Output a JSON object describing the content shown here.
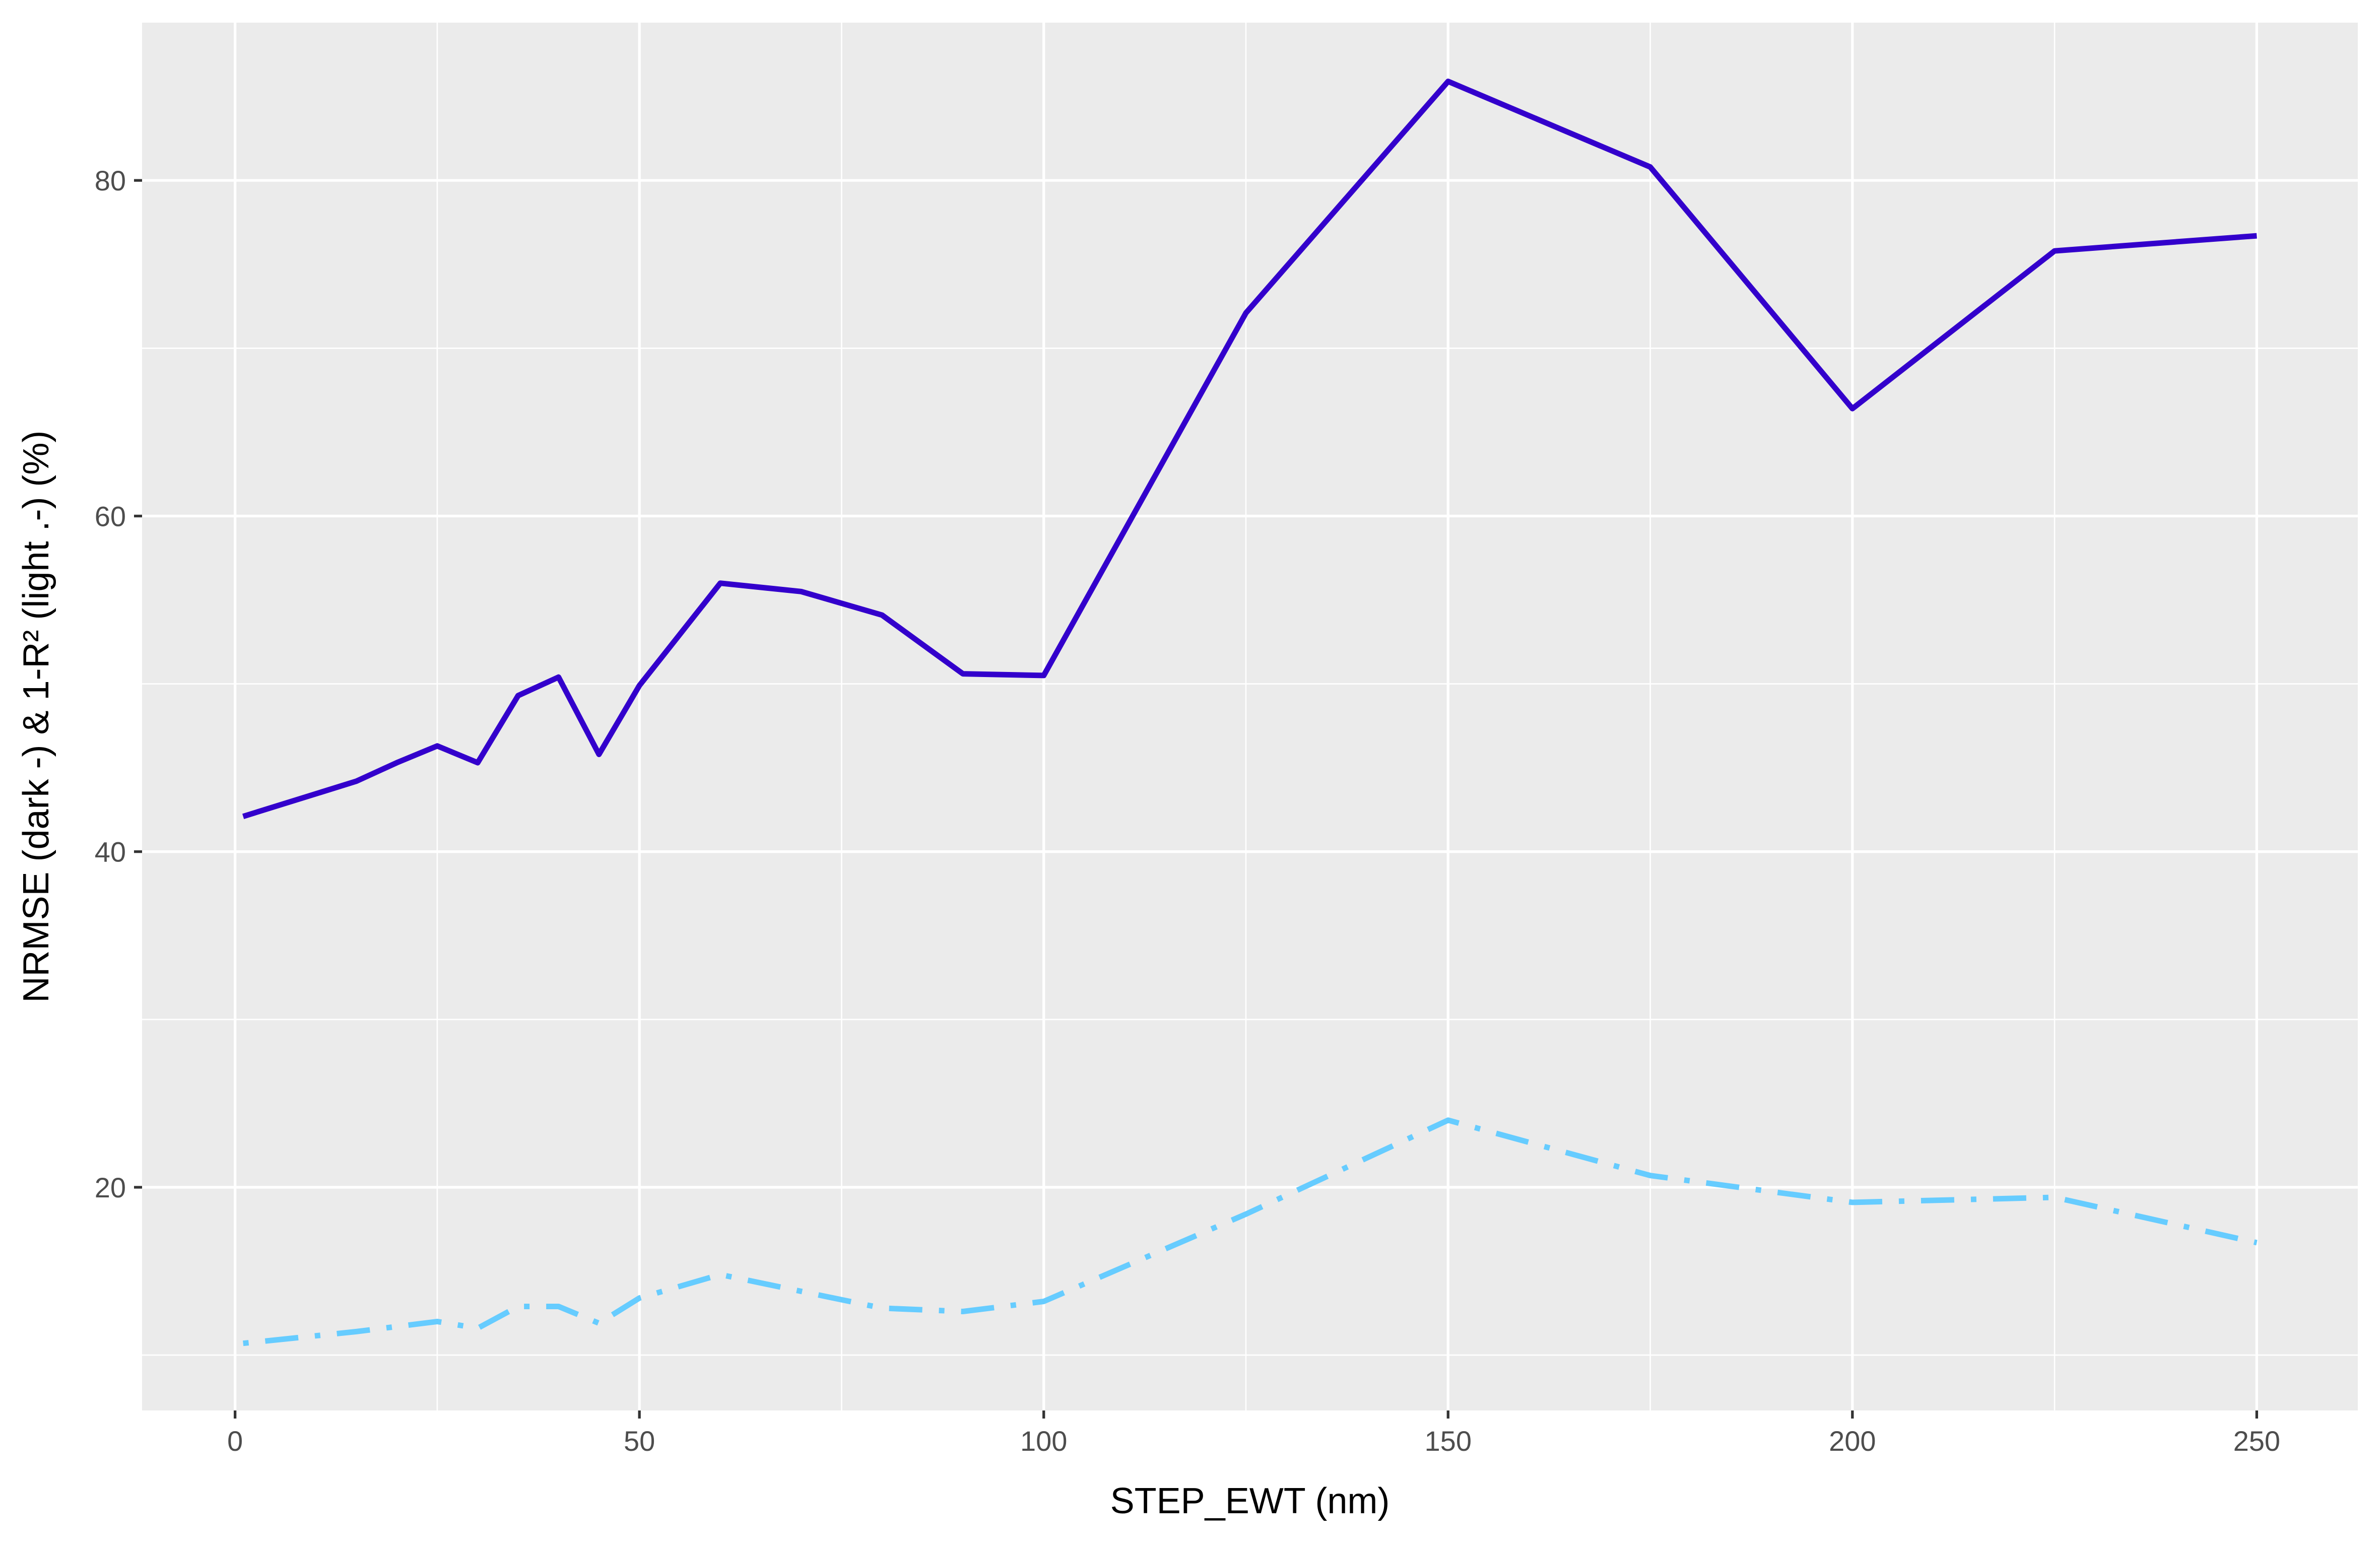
{
  "chart_data": {
    "type": "line",
    "title": "",
    "xlabel": "STEP_EWT (nm)",
    "ylabel": "NRMSE (dark -) & 1-R² (light .-) (%)",
    "xlim": [
      -11.5,
      262.5
    ],
    "ylim": [
      6.7,
      89.4
    ],
    "x_ticks": [
      0,
      50,
      100,
      150,
      200,
      250
    ],
    "x_minor_ticks": [
      25,
      75,
      125,
      175,
      225
    ],
    "y_ticks": [
      20,
      40,
      60,
      80
    ],
    "y_minor_ticks": [
      10,
      30,
      50,
      70
    ],
    "grid": true,
    "colors": {
      "panel_background": "#ebebeb",
      "grid": "#ffffff",
      "nrmse_line": "#3300cc",
      "r2_line": "#66ccff",
      "tick_label": "#4d4d4d",
      "tick_mark": "#333333",
      "axis_title": "#000000"
    },
    "series": [
      {
        "line_style": "solid",
        "color": "#3300cc",
        "points": [
          [
            1,
            42.1
          ],
          [
            15,
            44.2
          ],
          [
            20,
            45.3
          ],
          [
            25,
            46.3
          ],
          [
            30,
            45.3
          ],
          [
            35,
            49.3
          ],
          [
            40,
            50.4
          ],
          [
            45,
            45.8
          ],
          [
            50,
            49.9
          ],
          [
            60,
            56.0
          ],
          [
            70,
            55.5
          ],
          [
            80,
            54.1
          ],
          [
            90,
            50.6
          ],
          [
            100,
            50.5
          ],
          [
            125,
            72.1
          ],
          [
            150,
            85.9
          ],
          [
            175,
            80.8
          ],
          [
            200,
            66.4
          ],
          [
            225,
            75.8
          ],
          [
            250,
            76.7
          ]
        ]
      },
      {
        "line_style": "dotdash",
        "color": "#66ccff",
        "points": [
          [
            1,
            10.7
          ],
          [
            15,
            11.4
          ],
          [
            20,
            11.7
          ],
          [
            25,
            12.0
          ],
          [
            30,
            11.6
          ],
          [
            35,
            12.9
          ],
          [
            40,
            12.9
          ],
          [
            45,
            11.9
          ],
          [
            50,
            13.4
          ],
          [
            60,
            14.8
          ],
          [
            70,
            13.8
          ],
          [
            80,
            12.8
          ],
          [
            90,
            12.6
          ],
          [
            100,
            13.2
          ],
          [
            125,
            18.4
          ],
          [
            150,
            24.0
          ],
          [
            175,
            20.7
          ],
          [
            200,
            19.1
          ],
          [
            225,
            19.4
          ],
          [
            250,
            16.7
          ]
        ]
      }
    ]
  }
}
